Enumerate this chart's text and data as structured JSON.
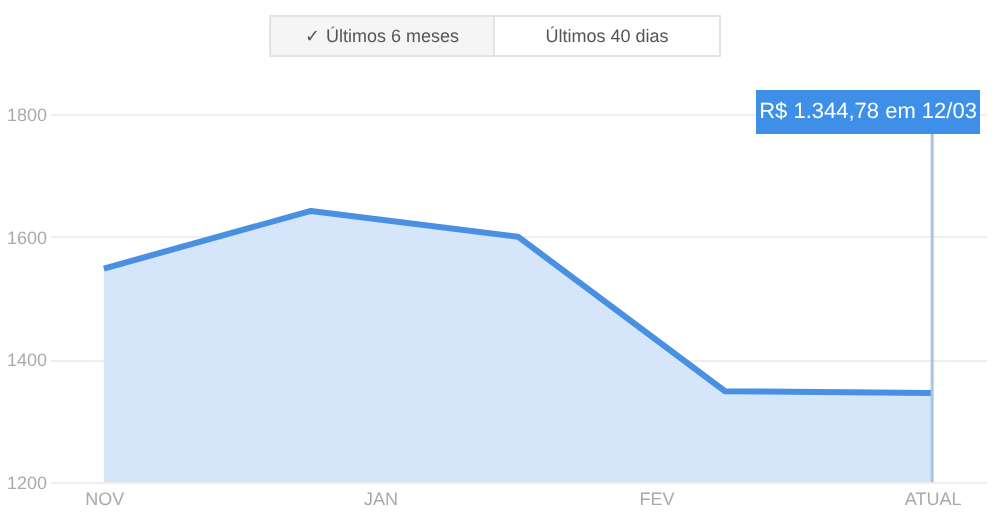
{
  "chart_data": {
    "type": "area",
    "categories": [
      "NOV",
      null,
      null,
      null,
      "JAN",
      null,
      null,
      null,
      "FEV",
      null,
      null,
      null,
      "ATUAL"
    ],
    "series": [
      {
        "color": "#4a90e2",
        "values": [
          1548,
          null,
          null,
          1642,
          null,
          null,
          1600,
          null,
          null,
          1348,
          null,
          null,
          1345
        ]
      }
    ],
    "ylim": [
      1200,
      1800
    ],
    "yticks": [
      1200,
      1400,
      1600,
      1800
    ],
    "grid": "y",
    "marker": "none",
    "line_style": "solid",
    "ref_lines": [
      {
        "axis": "x",
        "value": "ATUAL",
        "color": "#a9c4e0"
      }
    ],
    "annotations": [
      "✓ Últimos 6 meses",
      "Últimos 40 dias",
      "R$ 1.344,78 em 12/03"
    ]
  }
}
